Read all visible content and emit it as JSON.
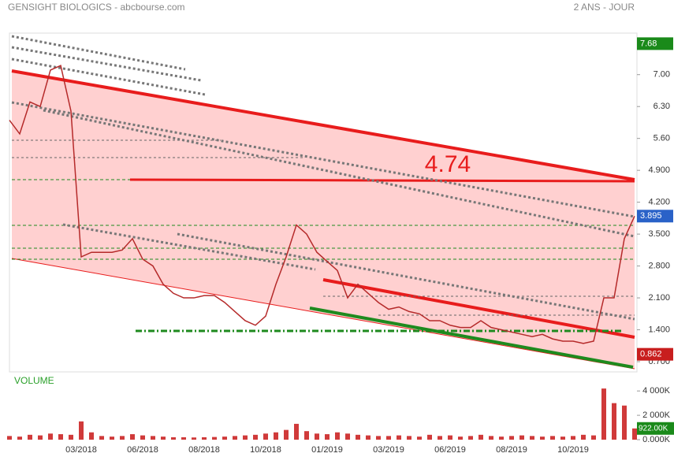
{
  "header": {
    "title": "GENSIGHT BIOLOGICS - abcbourse.com",
    "period": "2 ANS - JOUR"
  },
  "chart_data": [
    {
      "type": "line",
      "annotation": "4.74",
      "categories": [
        null,
        null,
        null,
        null,
        null,
        null,
        null,
        "03/2018",
        null,
        null,
        null,
        null,
        null,
        "06/2018",
        null,
        null,
        null,
        null,
        null,
        "08/2018",
        null,
        null,
        null,
        null,
        null,
        "10/2018",
        null,
        null,
        null,
        null,
        null,
        "01/2019",
        null,
        null,
        null,
        null,
        null,
        "03/2019",
        null,
        null,
        null,
        null,
        null,
        "06/2019",
        null,
        null,
        null,
        null,
        null,
        "08/2019",
        null,
        null,
        null,
        null,
        null,
        "10/2019",
        null,
        null,
        null,
        null,
        null,
        null
      ],
      "values": [
        6.0,
        5.7,
        6.4,
        6.3,
        7.1,
        7.2,
        6.2,
        3.0,
        3.1,
        3.1,
        3.1,
        3.15,
        3.4,
        2.95,
        2.8,
        2.4,
        2.2,
        2.1,
        2.1,
        2.15,
        2.15,
        2.0,
        1.8,
        1.6,
        1.5,
        1.7,
        2.4,
        3.0,
        3.7,
        3.5,
        3.1,
        2.9,
        2.7,
        2.1,
        2.4,
        2.2,
        2.0,
        1.85,
        1.9,
        1.8,
        1.75,
        1.6,
        1.6,
        1.5,
        1.45,
        1.45,
        1.6,
        1.45,
        1.4,
        1.35,
        1.3,
        1.25,
        1.3,
        1.2,
        1.15,
        1.15,
        1.1,
        1.15,
        2.1,
        2.1,
        3.4,
        3.895
      ],
      "color": "#b52a2a",
      "ylim": [
        0.51,
        7.86
      ],
      "yticks": [
        {
          "value": 7.0,
          "label": "7.00"
        },
        {
          "value": 6.3,
          "label": "6.30"
        },
        {
          "value": 5.6,
          "label": "5.60"
        },
        {
          "value": 4.9,
          "label": "4.900"
        },
        {
          "value": 4.2,
          "label": "4.200"
        },
        {
          "value": 3.5,
          "label": "3.500"
        },
        {
          "value": 2.8,
          "label": "2.800"
        },
        {
          "value": 2.1,
          "label": "2.100"
        },
        {
          "value": 1.4,
          "label": "1.400"
        },
        {
          "value": 0.7,
          "label": "0.700"
        }
      ],
      "markers": [
        {
          "value": 7.68,
          "color": "#1a8a1a"
        },
        {
          "value": 3.895,
          "color": "#2a62c8"
        },
        {
          "value": 0.862,
          "color": "#c81e1e"
        }
      ]
    },
    {
      "type": "bar",
      "title": "VOLUME",
      "values": [
        300,
        250,
        400,
        350,
        500,
        450,
        400,
        1500,
        600,
        300,
        250,
        300,
        450,
        350,
        300,
        250,
        200,
        200,
        180,
        200,
        220,
        250,
        300,
        350,
        400,
        500,
        600,
        800,
        1300,
        700,
        500,
        450,
        600,
        500,
        400,
        350,
        300,
        300,
        350,
        300,
        250,
        400,
        300,
        350,
        250,
        300,
        400,
        300,
        250,
        300,
        350,
        300,
        250,
        300,
        250,
        300,
        400,
        350,
        4200,
        3000,
        2800,
        922
      ],
      "color": "#d03a3a",
      "ylim": [
        0,
        4400
      ],
      "yticks": [
        {
          "value": 4000,
          "label": "4 000K"
        },
        {
          "value": 2000,
          "label": "2 000K"
        },
        {
          "value": 0,
          "label": "0.000K"
        }
      ],
      "value_labels": {
        "61": "922.00K"
      }
    }
  ]
}
